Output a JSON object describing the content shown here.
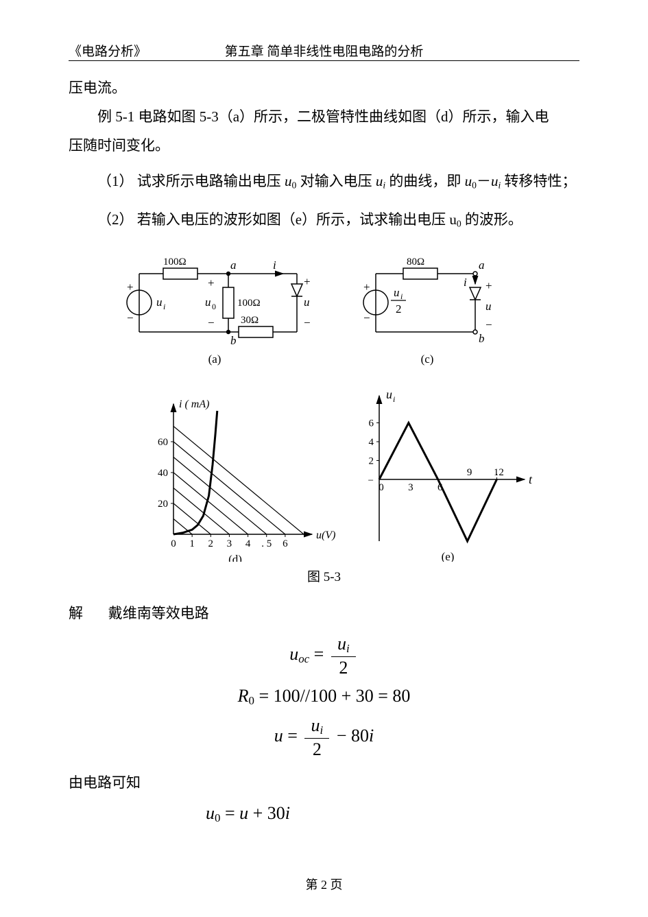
{
  "header": {
    "left": "《电路分析》",
    "center": "第五章 简单非线性电阻电路的分析"
  },
  "p1": "压电流。",
  "p2a": "例 5-1   电路如图 5-3（a）所示，二极管特性曲线如图（d）所示，输入电",
  "p2b": "压随时间变化。",
  "q1_prefix": "（1） 试求所示电路输出电压 ",
  "q1_mid1": " 对输入电压 ",
  "q1_mid2": " 的曲线，即 ",
  "q1_suffix": " 转移特性；",
  "q2_prefix": "（2） 若输入电压的波形如图（e）所示，试求输出电压 ",
  "q2_suffix": " 的波形。",
  "u0": "u",
  "u0_sub": "0",
  "ui": "u",
  "ui_sub": "i",
  "dash": "－",
  "figure": {
    "caption": "图 5-3",
    "circuit_a": {
      "R_top": "100Ω",
      "R_mid": "100Ω",
      "R_bot": "30Ω",
      "node_a": "a",
      "node_b": "b",
      "ui": "u",
      "ui_sub": "i",
      "u0": "u",
      "u0_sub": "0",
      "i": "i",
      "u": "u",
      "label": "(a)"
    },
    "circuit_c": {
      "R": "80Ω",
      "node_a": "a",
      "node_b": "b",
      "src_num": "u",
      "src_sub": "i",
      "src_den": "2",
      "i": "i",
      "u": "u",
      "label": "(c)"
    },
    "chart_d": {
      "type": "line",
      "ylabel": "i ( mA)",
      "xlabel": "u(V)",
      "y_ticks": [
        "20",
        "40",
        "60"
      ],
      "y_tick_vals": [
        20,
        40,
        60
      ],
      "ymax": 80,
      "x_ticks": [
        "0",
        "1",
        "2",
        "3",
        "4",
        ". 5",
        "6"
      ],
      "x_tick_vals": [
        0,
        1,
        2,
        3,
        4,
        5,
        6
      ],
      "xmax": 7,
      "diode_pts": [
        [
          0,
          0
        ],
        [
          0.5,
          1
        ],
        [
          1,
          3
        ],
        [
          1.3,
          6
        ],
        [
          1.6,
          12
        ],
        [
          1.9,
          25
        ],
        [
          2.1,
          45
        ],
        [
          2.25,
          65
        ],
        [
          2.35,
          80
        ]
      ],
      "load_lines": [
        [
          [
            0,
            10
          ],
          [
            1,
            0
          ]
        ],
        [
          [
            0,
            20
          ],
          [
            2,
            0
          ]
        ],
        [
          [
            0,
            30
          ],
          [
            3,
            0
          ]
        ],
        [
          [
            0,
            40
          ],
          [
            4,
            0
          ]
        ],
        [
          [
            0,
            50
          ],
          [
            5,
            0
          ]
        ],
        [
          [
            0,
            60
          ],
          [
            6,
            0
          ]
        ],
        [
          [
            0,
            70
          ],
          [
            7,
            0
          ]
        ]
      ],
      "background_color": "#ffffff",
      "line_color": "#000000",
      "diode_line_width": 3,
      "load_line_width": 1.2,
      "axis_width": 1.5,
      "label": "(d)"
    },
    "chart_e": {
      "type": "line",
      "ylabel": "u",
      "ylabel_sub": "i",
      "xlabel": "t",
      "y_ticks": [
        "2",
        "4",
        "6"
      ],
      "y_tick_vals": [
        2,
        4,
        6
      ],
      "x_ticks": [
        "0",
        "3",
        "6",
        "9",
        "12"
      ],
      "x_tick_vals": [
        0,
        3,
        6,
        9,
        12
      ],
      "ymin": -6,
      "ymax": 8,
      "xmax": 14,
      "wave_pts": [
        [
          0,
          0
        ],
        [
          3,
          6
        ],
        [
          6,
          0
        ],
        [
          9,
          -6
        ],
        [
          12,
          0
        ]
      ],
      "background_color": "#ffffff",
      "line_color": "#000000",
      "wave_line_width": 3,
      "axis_width": 1.5,
      "label": "(e)"
    }
  },
  "sol_label": "解",
  "sol_text1": "戴维南等效电路",
  "eq1_lhs": "u",
  "eq1_lhs_sub": "oc",
  "eq1_num": "u",
  "eq1_num_sub": "i",
  "eq1_den": "2",
  "eq2": "R",
  "eq2_sub": "0",
  "eq2_rhs": " = 100//100 + 30 = 80",
  "eq3_lhs": "u",
  "eq3_num": "u",
  "eq3_num_sub": "i",
  "eq3_den": "2",
  "eq3_tail": " −   80",
  "eq3_i": "i",
  "sol_text2": "由电路可知",
  "eq4_lhs": "u",
  "eq4_lhs_sub": "0",
  "eq4_mid": " = ",
  "eq4_u": "u",
  "eq4_plus": " + 30",
  "eq4_i": "i",
  "footer": "第 2 页"
}
